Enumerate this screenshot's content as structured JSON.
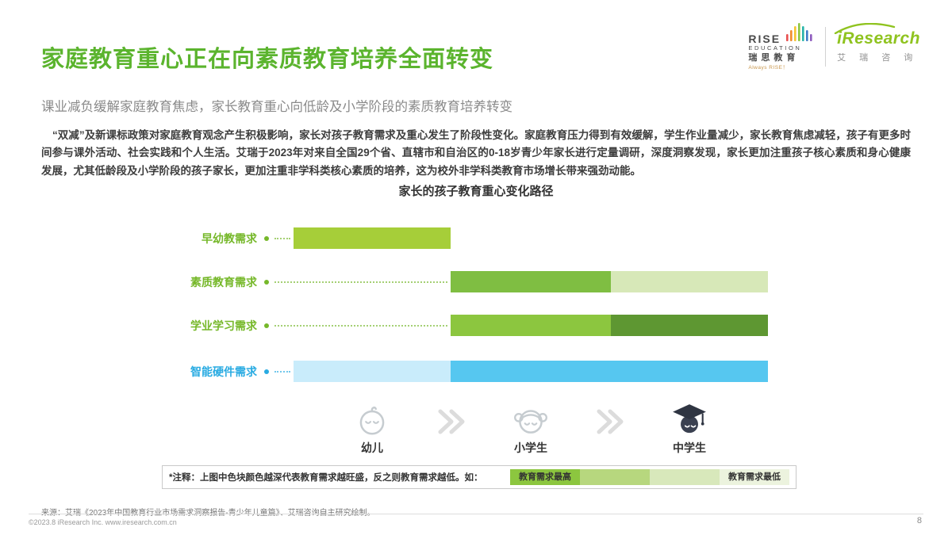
{
  "header": {
    "title": "家庭教育重心正在向素质教育培养全面转变",
    "subtitle": "课业减负缓解家庭教育焦虑，家长教育重心向低龄及小学阶段的素质教育培养转变"
  },
  "logos": {
    "rise": {
      "name": "RISE",
      "sub": "EDUCATION",
      "cn": "瑞思教育",
      "tagline": "Always RISE！",
      "icon": "rise-bars-icon",
      "bar_colors": [
        "#E8504F",
        "#F08C2D",
        "#F5C431",
        "#8CC63F",
        "#27B3A9",
        "#3E7DC8",
        "#8E5BBE"
      ]
    },
    "iresearch": {
      "name": "iResearch",
      "cn": "艾 瑞 咨 询",
      "brand_color": "#8FC31F"
    }
  },
  "body_paragraph": "“双减”及新课标政策对家庭教育观念产生积极影响，家长对孩子教育需求及重心发生了阶段性变化。家庭教育压力得到有效缓解，学生作业量减少，家长教育焦虑减轻，孩子有更多时间参与课外活动、社会实践和个人生活。艾瑞于2023年对来自全国29个省、直辖市和自治区的0-18岁青少年家长进行定量调研，深度洞察发现，家长更加注重孩子核心素质和身心健康发展，尤其低龄段及小学阶段的孩子家长，更加注重非学科类核心素质的培养，这为校外非学科类教育市场增长带来强劲动能。",
  "chart_data": {
    "type": "bar",
    "title": "家长的孩子教育重心变化路径",
    "stages": [
      {
        "label": "幼儿",
        "icon": "baby-icon"
      },
      {
        "label": "小学生",
        "icon": "student-girl-icon"
      },
      {
        "label": "中学生",
        "icon": "graduate-icon"
      }
    ],
    "legend_rule": "色块颜色越深代表教育需求越旺盛，越浅代表教育需求越低",
    "rows": [
      {
        "label": "早幼教需求",
        "label_color": "#76B82A",
        "segments": [
          {
            "from": 0,
            "to": 1,
            "from_stage": "幼儿",
            "to_stage": "幼儿",
            "color": "#A6CE39",
            "intensity": "高"
          }
        ]
      },
      {
        "label": "素质教育需求",
        "label_color": "#76B82A",
        "segments": [
          {
            "from": 1,
            "to": 2,
            "from_stage": "小学生",
            "to_stage": "小学生",
            "color": "#7FBE42",
            "intensity": "高"
          },
          {
            "from": 2,
            "to": 3,
            "from_stage": "中学生",
            "to_stage": "中学生",
            "color": "#D7E8B8",
            "intensity": "低"
          }
        ]
      },
      {
        "label": "学业学习需求",
        "label_color": "#76B82A",
        "segments": [
          {
            "from": 1,
            "to": 2,
            "from_stage": "小学生",
            "to_stage": "小学生",
            "color": "#8CC63F",
            "intensity": "中"
          },
          {
            "from": 2,
            "to": 3,
            "from_stage": "中学生",
            "to_stage": "中学生",
            "color": "#5E9732",
            "intensity": "高"
          }
        ]
      },
      {
        "label": "智能硬件需求",
        "label_color": "#29ABE2",
        "segments": [
          {
            "from": 0,
            "to": 1,
            "from_stage": "幼儿",
            "to_stage": "幼儿",
            "color": "#C9ECFB",
            "intensity": "低"
          },
          {
            "from": 1,
            "to": 3,
            "from_stage": "小学生",
            "to_stage": "中学生",
            "color": "#56C7F0",
            "intensity": "高"
          }
        ]
      }
    ]
  },
  "note": {
    "text": "*注释：上图中色块颜色越深代表教育需求越旺盛，反之则教育需求越低。如：",
    "legend": {
      "high_label": "教育需求最高",
      "low_label": "教育需求最低",
      "colors": [
        "#8CC63F",
        "#B7D77E",
        "#D8E8BB",
        "#ECF3DE"
      ]
    }
  },
  "source": "来源：艾瑞《2023年中国教育行业市场需求洞察报告-青少年儿童篇》、艾瑞咨询自主研究绘制。",
  "footer": {
    "copyright": "©2023.8 iResearch Inc. www.iresearch.com.cn",
    "page": "8"
  }
}
